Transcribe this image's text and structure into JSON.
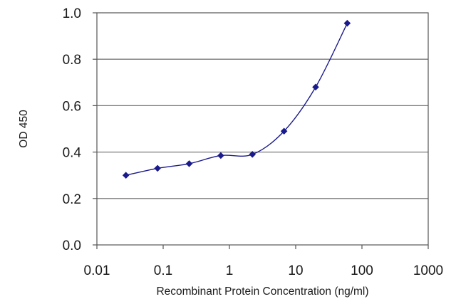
{
  "chart_data": {
    "type": "line",
    "xscale": "log",
    "xlim": [
      0.01,
      1000
    ],
    "ylim": [
      0.0,
      1.0
    ],
    "xticks": [
      "0.01",
      "0.1",
      "1",
      "10",
      "100",
      "1000"
    ],
    "yticks": [
      "0.0",
      "0.2",
      "0.4",
      "0.6",
      "0.8",
      "1.0"
    ],
    "xlabel": "Recombinant Protein Concentration (ng/ml)",
    "ylabel": "OD 450",
    "grid": "horizontal",
    "series": [
      {
        "color": "#1a1a8c",
        "points": [
          {
            "x": 0.0274,
            "y": 0.3
          },
          {
            "x": 0.0823,
            "y": 0.33
          },
          {
            "x": 0.247,
            "y": 0.35
          },
          {
            "x": 0.741,
            "y": 0.385
          },
          {
            "x": 2.22,
            "y": 0.39
          },
          {
            "x": 6.67,
            "y": 0.49
          },
          {
            "x": 20,
            "y": 0.68
          },
          {
            "x": 60,
            "y": 0.955
          }
        ]
      }
    ]
  }
}
